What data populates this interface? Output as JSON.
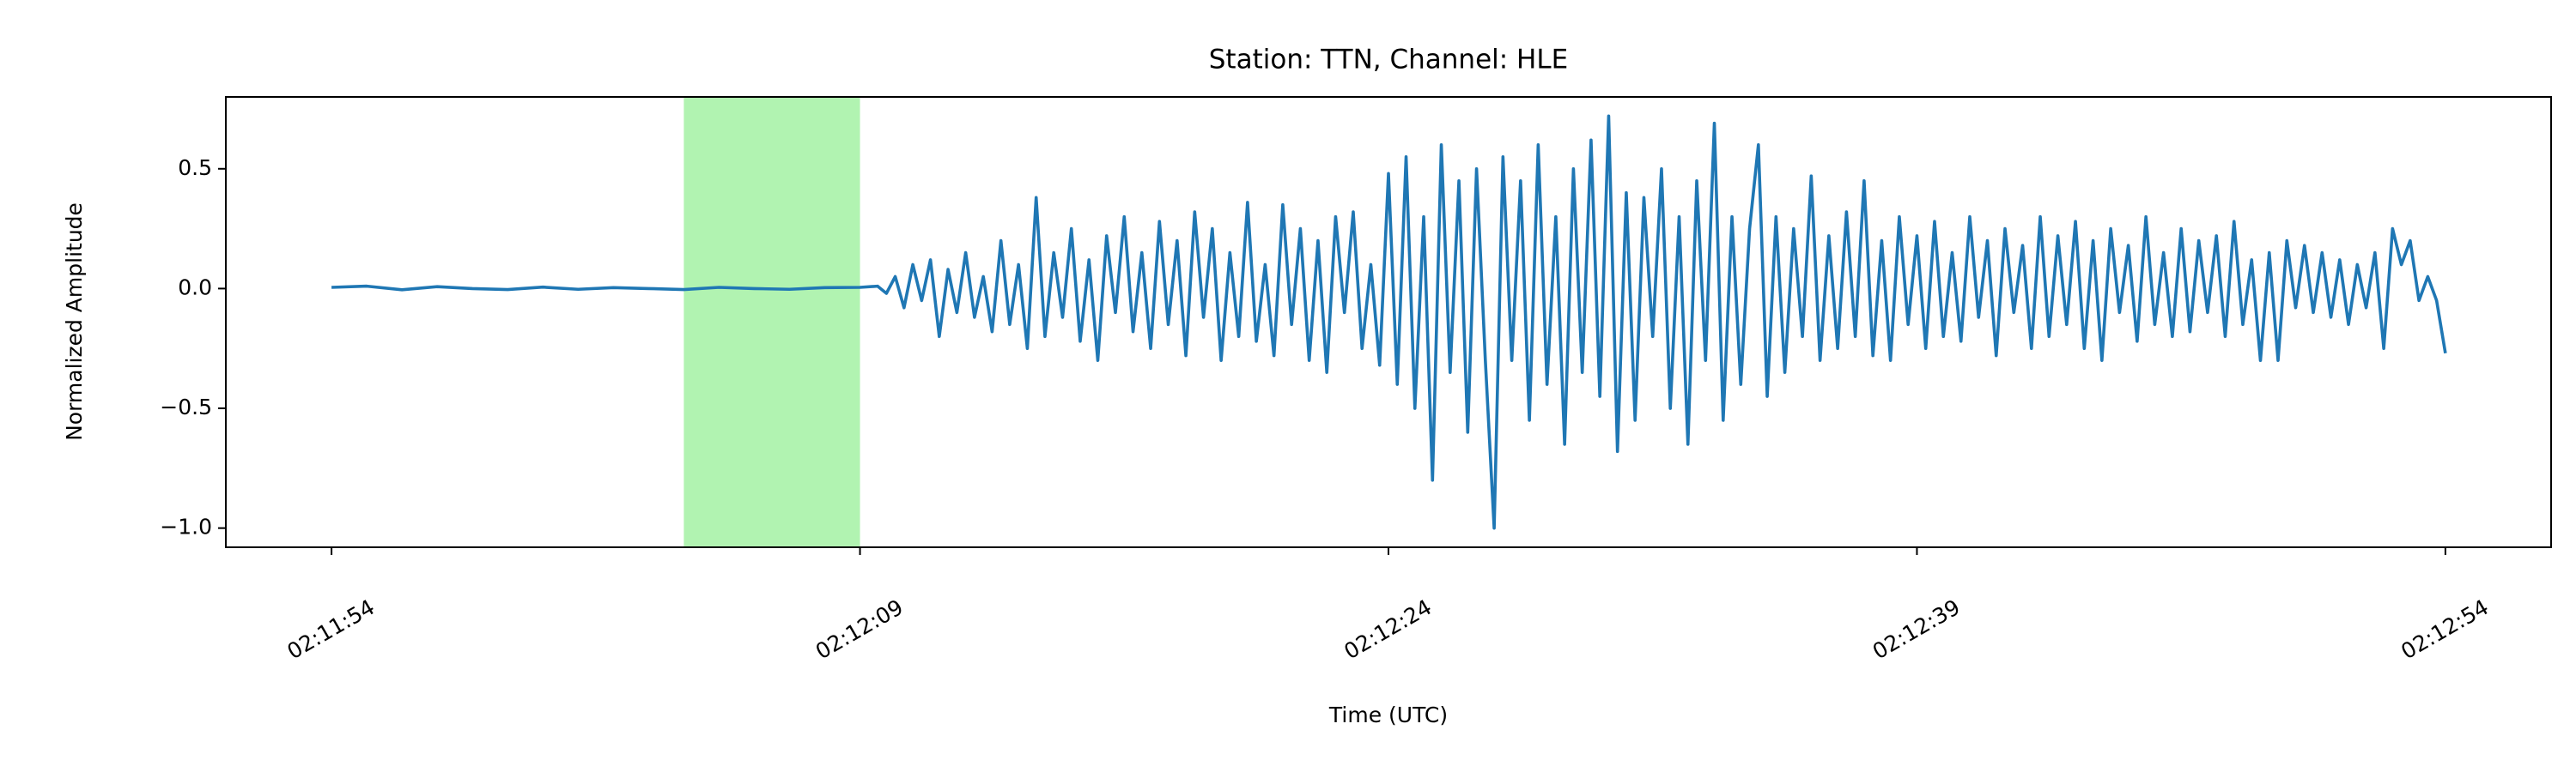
{
  "chart_data": {
    "type": "line",
    "title": "Station: TTN, Channel: HLE",
    "x_label": "Time (UTC)",
    "y_label": "Normalized Amplitude",
    "color": "#1f77b4",
    "highlight": {
      "x": [
        7924,
        7929
      ],
      "color": "#b1f3b1"
    },
    "xlim": [
      7911,
      7977
    ],
    "ylim": [
      -1.08,
      0.8
    ],
    "xticks": [
      {
        "value": 7914,
        "label": "02:11:54"
      },
      {
        "value": 7929,
        "label": "02:12:09"
      },
      {
        "value": 7944,
        "label": "02:12:24"
      },
      {
        "value": 7959,
        "label": "02:12:39"
      },
      {
        "value": 7974,
        "label": "02:12:54"
      }
    ],
    "yticks": [
      0.5,
      {
        "value": 0,
        "label": "0.0"
      },
      {
        "value": -0.5,
        "label": "−0.5"
      },
      {
        "value": -1,
        "label": "−1.0"
      }
    ],
    "x": [
      7914,
      7915,
      7916,
      7917,
      7918,
      7919,
      7920,
      7921,
      7922,
      7923,
      7924,
      7925,
      7926,
      7927,
      7928,
      7929,
      7929.5,
      7929.75,
      7930,
      7930.25,
      7930.5,
      7930.75,
      7931,
      7931.25,
      7931.5,
      7931.75,
      7932,
      7932.25,
      7932.5,
      7932.75,
      7933,
      7933.25,
      7933.5,
      7933.75,
      7934,
      7934.25,
      7934.5,
      7934.75,
      7935,
      7935.25,
      7935.5,
      7935.75,
      7936,
      7936.25,
      7936.5,
      7936.75,
      7937,
      7937.25,
      7937.5,
      7937.75,
      7938,
      7938.25,
      7938.5,
      7938.75,
      7939,
      7939.25,
      7939.5,
      7939.75,
      7940,
      7940.25,
      7940.5,
      7940.75,
      7941,
      7941.25,
      7941.5,
      7941.75,
      7942,
      7942.25,
      7942.5,
      7942.75,
      7943,
      7943.25,
      7943.5,
      7943.75,
      7944,
      7944.25,
      7944.5,
      7944.75,
      7945,
      7945.25,
      7945.5,
      7945.75,
      7946,
      7946.25,
      7946.5,
      7946.75,
      7947,
      7947.25,
      7947.5,
      7947.75,
      7948,
      7948.25,
      7948.5,
      7948.75,
      7949,
      7949.25,
      7949.5,
      7949.75,
      7950,
      7950.25,
      7950.5,
      7950.75,
      7951,
      7951.25,
      7951.5,
      7951.75,
      7952,
      7952.25,
      7952.5,
      7952.75,
      7953,
      7953.25,
      7953.5,
      7953.75,
      7954,
      7954.25,
      7954.5,
      7954.75,
      7955,
      7955.25,
      7955.5,
      7955.75,
      7956,
      7956.25,
      7956.5,
      7956.75,
      7957,
      7957.25,
      7957.5,
      7957.75,
      7958,
      7958.25,
      7958.5,
      7958.75,
      7959,
      7959.25,
      7959.5,
      7959.75,
      7960,
      7960.25,
      7960.5,
      7960.75,
      7961,
      7961.25,
      7961.5,
      7961.75,
      7962,
      7962.25,
      7962.5,
      7962.75,
      7963,
      7963.25,
      7963.5,
      7963.75,
      7964,
      7964.25,
      7964.5,
      7964.75,
      7965,
      7965.25,
      7965.5,
      7965.75,
      7966,
      7966.25,
      7966.5,
      7966.75,
      7967,
      7967.25,
      7967.5,
      7967.75,
      7968,
      7968.25,
      7968.5,
      7968.75,
      7969,
      7969.25,
      7969.5,
      7969.75,
      7970,
      7970.25,
      7970.5,
      7970.75,
      7971,
      7971.25,
      7971.5,
      7971.75,
      7972,
      7972.25,
      7972.5,
      7972.75,
      7973,
      7973.25,
      7973.5,
      7973.75,
      7974
    ],
    "values": [
      0.005,
      0.01,
      -0.005,
      0.008,
      0,
      -0.004,
      0.006,
      -0.003,
      0.004,
      0,
      -0.004,
      0.005,
      0,
      -0.003,
      0.004,
      0.005,
      0.01,
      -0.02,
      0.05,
      -0.08,
      0.1,
      -0.05,
      0.12,
      -0.2,
      0.08,
      -0.1,
      0.15,
      -0.12,
      0.05,
      -0.18,
      0.2,
      -0.15,
      0.1,
      -0.25,
      0.38,
      -0.2,
      0.15,
      -0.12,
      0.25,
      -0.22,
      0.12,
      -0.3,
      0.22,
      -0.1,
      0.3,
      -0.18,
      0.15,
      -0.25,
      0.28,
      -0.15,
      0.2,
      -0.28,
      0.32,
      -0.12,
      0.25,
      -0.3,
      0.15,
      -0.2,
      0.36,
      -0.22,
      0.1,
      -0.28,
      0.35,
      -0.15,
      0.25,
      -0.3,
      0.2,
      -0.35,
      0.3,
      -0.1,
      0.32,
      -0.25,
      0.1,
      -0.32,
      0.48,
      -0.4,
      0.55,
      -0.5,
      0.3,
      -0.8,
      0.6,
      -0.35,
      0.45,
      -0.6,
      0.5,
      -0.3,
      -1.0,
      0.55,
      -0.3,
      0.45,
      -0.55,
      0.6,
      -0.4,
      0.3,
      -0.65,
      0.5,
      -0.35,
      0.62,
      -0.45,
      0.72,
      -0.68,
      0.4,
      -0.55,
      0.38,
      -0.2,
      0.5,
      -0.5,
      0.3,
      -0.65,
      0.45,
      -0.3,
      0.69,
      -0.55,
      0.3,
      -0.4,
      0.25,
      0.6,
      -0.45,
      0.3,
      -0.35,
      0.25,
      -0.2,
      0.47,
      -0.3,
      0.22,
      -0.25,
      0.32,
      -0.2,
      0.45,
      -0.28,
      0.2,
      -0.3,
      0.3,
      -0.15,
      0.22,
      -0.25,
      0.28,
      -0.2,
      0.15,
      -0.22,
      0.3,
      -0.12,
      0.2,
      -0.28,
      0.25,
      -0.1,
      0.18,
      -0.25,
      0.3,
      -0.2,
      0.22,
      -0.15,
      0.28,
      -0.25,
      0.2,
      -0.3,
      0.25,
      -0.1,
      0.18,
      -0.22,
      0.3,
      -0.15,
      0.15,
      -0.2,
      0.25,
      -0.18,
      0.2,
      -0.1,
      0.22,
      -0.2,
      0.28,
      -0.15,
      0.12,
      -0.3,
      0.15,
      -0.3,
      0.2,
      -0.08,
      0.18,
      -0.1,
      0.15,
      -0.12,
      0.12,
      -0.15,
      0.1,
      -0.08,
      0.15,
      -0.25,
      0.25,
      0.1,
      0.2,
      -0.05,
      0.05,
      -0.05,
      -0.27
    ]
  }
}
